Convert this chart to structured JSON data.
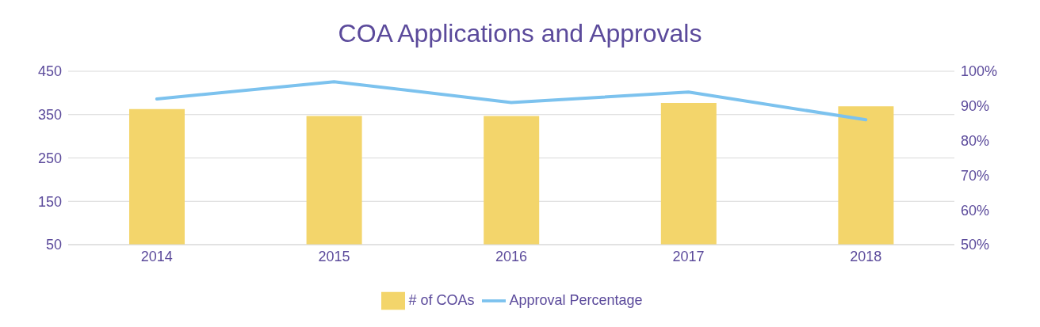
{
  "chart_data": {
    "type": "bar",
    "title": "COA Applications and Approvals",
    "categories": [
      "2014",
      "2015",
      "2016",
      "2017",
      "2018"
    ],
    "series": [
      {
        "name": "# of COAs",
        "color": "#f3d56b",
        "values": [
          363,
          347,
          347,
          377,
          369
        ]
      },
      {
        "name": "Approval Percentage",
        "type": "line",
        "axis": "y2",
        "color": "#7cc2ee",
        "values": [
          92,
          97,
          91,
          94,
          86
        ]
      }
    ],
    "ylim": [
      50,
      450
    ],
    "yticks": [
      50,
      150,
      250,
      350,
      450
    ],
    "y2lim": [
      50,
      100
    ],
    "y2ticks": [
      {
        "value": 50,
        "label": "50%"
      },
      {
        "value": 60,
        "label": "60%"
      },
      {
        "value": 70,
        "label": "70%"
      },
      {
        "value": 80,
        "label": "80%"
      },
      {
        "value": 90,
        "label": "90%"
      },
      {
        "value": 100,
        "label": "100%"
      }
    ],
    "grid": "y",
    "legend": "bottom",
    "marker": "none"
  }
}
